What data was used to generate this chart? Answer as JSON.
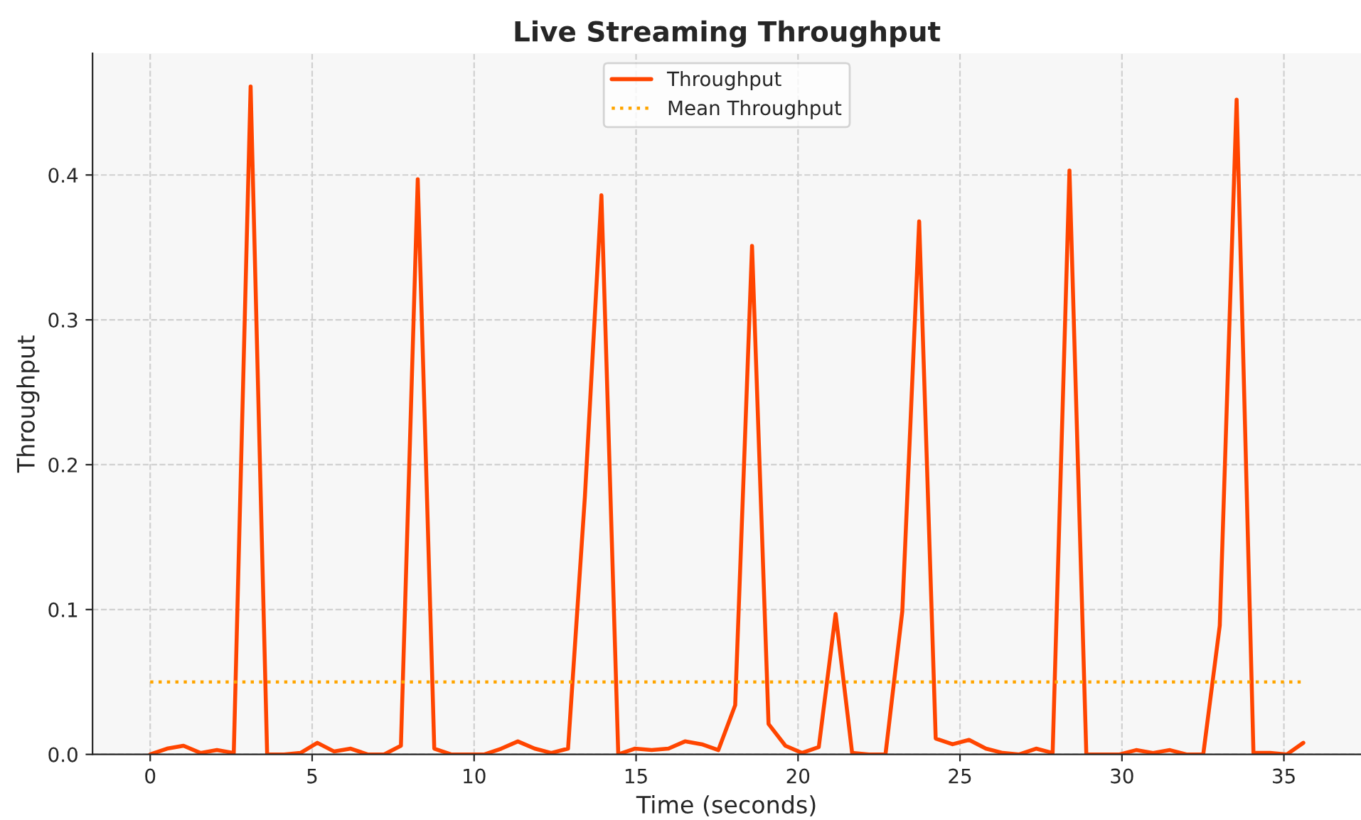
{
  "chart_data": {
    "type": "line",
    "title": "Live Streaming Throughput",
    "xlabel": "Time (seconds)",
    "ylabel": "Throughput",
    "series": [
      {
        "name": "Throughput",
        "color": "#ff4500",
        "line_style": "solid",
        "x": [
          0,
          0.52,
          1.03,
          1.55,
          2.06,
          2.58,
          3.1,
          3.61,
          4.13,
          4.64,
          5.16,
          5.68,
          6.19,
          6.71,
          7.22,
          7.74,
          8.26,
          8.77,
          9.29,
          9.8,
          10.32,
          10.84,
          11.35,
          11.87,
          12.38,
          12.9,
          13.42,
          13.93,
          14.45,
          14.96,
          15.48,
          16.0,
          16.51,
          17.03,
          17.54,
          18.06,
          18.58,
          19.09,
          19.61,
          20.12,
          20.64,
          21.16,
          21.67,
          22.19,
          22.7,
          23.22,
          23.74,
          24.25,
          24.77,
          25.28,
          25.8,
          26.32,
          26.83,
          27.35,
          27.86,
          28.38,
          28.9,
          29.41,
          29.93,
          30.44,
          30.96,
          31.48,
          31.99,
          32.51,
          33.02,
          33.54,
          34.06,
          34.57,
          35.09,
          35.6
        ],
        "values": [
          0.0,
          0.004,
          0.006,
          0.001,
          0.003,
          0.001,
          0.461,
          0.0,
          0.0,
          0.001,
          0.008,
          0.002,
          0.004,
          0.0,
          0.0,
          0.006,
          0.397,
          0.004,
          0.0,
          0.0,
          0.0,
          0.004,
          0.009,
          0.004,
          0.001,
          0.004,
          0.178,
          0.386,
          0.0,
          0.004,
          0.003,
          0.004,
          0.009,
          0.007,
          0.003,
          0.034,
          0.351,
          0.021,
          0.006,
          0.001,
          0.005,
          0.097,
          0.001,
          0.0,
          0.0,
          0.099,
          0.368,
          0.011,
          0.007,
          0.01,
          0.004,
          0.001,
          0.0,
          0.004,
          0.001,
          0.403,
          0.0,
          0.0,
          0.0,
          0.003,
          0.001,
          0.003,
          0.0,
          0.0,
          0.089,
          0.452,
          0.001,
          0.001,
          0.0,
          0.008
        ]
      },
      {
        "name": "Mean Throughput",
        "color": "#ffa500",
        "line_style": "dotted",
        "x": [
          0,
          35.6
        ],
        "values": [
          0.05,
          0.05
        ]
      }
    ],
    "xlim": [
      -1.78,
      37.38
    ],
    "ylim": [
      0,
      0.484
    ],
    "xticks": [
      0,
      5,
      10,
      15,
      20,
      25,
      30,
      35
    ],
    "yticks": [
      {
        "value": 0,
        "label": "0.0"
      },
      {
        "value": 0.1,
        "label": "0.1"
      },
      {
        "value": 0.2,
        "label": "0.2"
      },
      {
        "value": 0.3,
        "label": "0.3"
      },
      {
        "value": 0.4,
        "label": "0.4"
      }
    ],
    "grid": true,
    "legend": "top",
    "marker": "none"
  }
}
